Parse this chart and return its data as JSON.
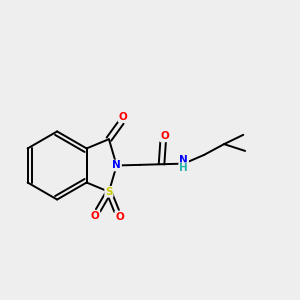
{
  "bg_color": "#eeeeee",
  "bond_color": "#000000",
  "colors": {
    "O": "#ff0000",
    "N": "#0000ff",
    "S": "#cccc00",
    "H": "#20b2aa",
    "C": "#000000"
  },
  "lw": 1.4
}
